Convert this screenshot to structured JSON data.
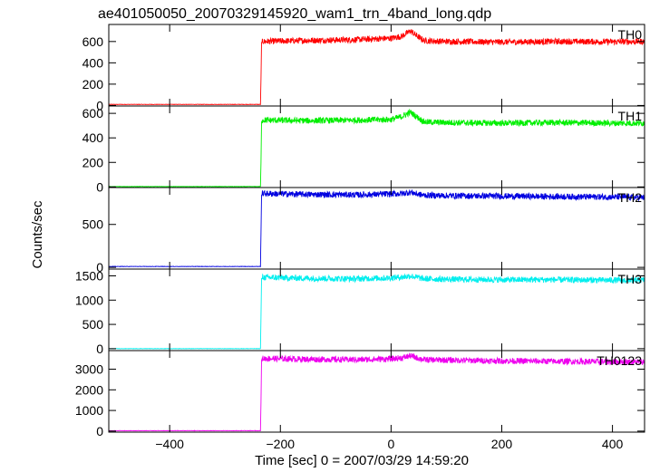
{
  "chart_data": {
    "type": "line",
    "title": "ae401050050_20070329145920_wam1_trn_4band_long.qdp",
    "xlabel": "Time [sec] 0 = 2007/03/29 14:59:20",
    "ylabel": "Counts/sec",
    "xlim": [
      -510,
      458
    ],
    "x_ticks": [
      -400,
      -200,
      0,
      200,
      400
    ],
    "x_tick_labels": [
      "−400",
      "−200",
      "0",
      "200",
      "400"
    ],
    "grid": false,
    "series": [
      {
        "name": "TH0",
        "color": "#ff0000",
        "ylim": [
          -5,
          760
        ],
        "y_ticks": [
          0,
          200,
          400,
          600
        ],
        "x": [
          -510,
          -236,
          -235,
          -234,
          -232,
          -150,
          -60,
          0,
          20,
          35,
          50,
          60,
          100,
          200,
          300,
          400,
          450
        ],
        "y": [
          10,
          10,
          250,
          590,
          600,
          610,
          618,
          630,
          650,
          700,
          640,
          608,
          600,
          595,
          600,
          598,
          600
        ]
      },
      {
        "name": "TH1",
        "color": "#00ee00",
        "ylim": [
          -5,
          660
        ],
        "y_ticks": [
          0,
          200,
          400,
          600
        ],
        "x": [
          -510,
          -236,
          -235,
          -234,
          -232,
          -150,
          -60,
          0,
          20,
          35,
          50,
          60,
          100,
          200,
          300,
          400,
          450
        ],
        "y": [
          3,
          3,
          200,
          530,
          545,
          540,
          545,
          550,
          575,
          610,
          560,
          530,
          525,
          520,
          525,
          520,
          520
        ]
      },
      {
        "name": "TH2",
        "color": "#0000e0",
        "ylim": [
          -20,
          930
        ],
        "y_ticks": [
          0,
          500
        ],
        "x": [
          -510,
          -236,
          -235,
          -234,
          -232,
          -150,
          -60,
          0,
          20,
          35,
          50,
          60,
          100,
          200,
          300,
          400,
          450
        ],
        "y": [
          10,
          10,
          400,
          840,
          860,
          850,
          845,
          855,
          860,
          875,
          850,
          840,
          835,
          830,
          825,
          820,
          815
        ]
      },
      {
        "name": "TH3",
        "color": "#00eeee",
        "ylim": [
          -40,
          1640
        ],
        "y_ticks": [
          0,
          500,
          1000,
          1500
        ],
        "x": [
          -510,
          -236,
          -235,
          -234,
          -232,
          -150,
          -60,
          0,
          20,
          35,
          50,
          60,
          100,
          200,
          300,
          400,
          450
        ],
        "y": [
          0,
          0,
          650,
          1440,
          1470,
          1450,
          1440,
          1460,
          1475,
          1500,
          1460,
          1440,
          1430,
          1420,
          1420,
          1410,
          1410
        ]
      },
      {
        "name": "TH0123",
        "color": "#ee00ee",
        "ylim": [
          -50,
          3900
        ],
        "y_ticks": [
          0,
          1000,
          2000,
          3000
        ],
        "x": [
          -510,
          -236,
          -235,
          -234,
          -232,
          -150,
          -60,
          0,
          20,
          35,
          50,
          60,
          100,
          200,
          300,
          400,
          450
        ],
        "y": [
          20,
          20,
          1400,
          3450,
          3520,
          3480,
          3460,
          3500,
          3550,
          3650,
          3520,
          3460,
          3440,
          3400,
          3380,
          3360,
          3350
        ]
      }
    ]
  }
}
